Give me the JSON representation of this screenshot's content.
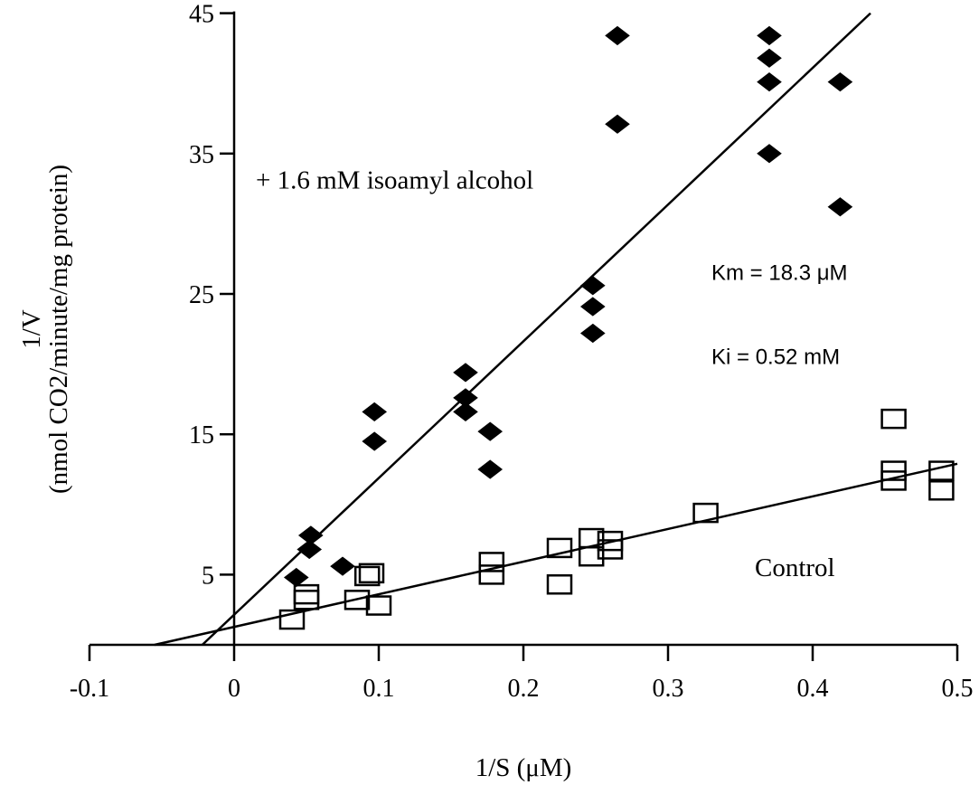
{
  "chart_data": {
    "type": "scatter",
    "title": "",
    "xlabel": "1/S (μM)",
    "ylabel_lines": [
      "1/V",
      "(nmol CO2/minute/mg protein)"
    ],
    "xlim": [
      -0.1,
      0.5
    ],
    "ylim": [
      -5,
      45
    ],
    "x_ticks": [
      -0.1,
      0,
      0.1,
      0.2,
      0.3,
      0.4,
      0.5
    ],
    "x_tick_labels": [
      "-0.1",
      "0",
      "0.1",
      "0.2",
      "0.3",
      "0.4",
      "0.5"
    ],
    "y_ticks": [
      5,
      15,
      25,
      35,
      45
    ],
    "y_tick_labels": [
      "5",
      "15",
      "25",
      "35",
      "45"
    ],
    "grid": false,
    "series": [
      {
        "name": "+ 1.6 mM isoamyl alcohol",
        "marker": "filled-diamond",
        "color": "#000000",
        "points": [
          [
            0.043,
            4.8
          ],
          [
            0.052,
            6.8
          ],
          [
            0.053,
            7.8
          ],
          [
            0.075,
            5.6
          ],
          [
            0.097,
            16.6
          ],
          [
            0.097,
            14.5
          ],
          [
            0.16,
            19.4
          ],
          [
            0.16,
            17.6
          ],
          [
            0.16,
            16.6
          ],
          [
            0.177,
            15.2
          ],
          [
            0.177,
            12.5
          ],
          [
            0.248,
            25.6
          ],
          [
            0.248,
            24.1
          ],
          [
            0.248,
            22.2
          ],
          [
            0.265,
            43.4
          ],
          [
            0.265,
            37.1
          ],
          [
            0.37,
            43.4
          ],
          [
            0.37,
            41.8
          ],
          [
            0.37,
            40.1
          ],
          [
            0.37,
            35.0
          ],
          [
            0.419,
            40.1
          ],
          [
            0.419,
            31.2
          ]
        ],
        "fit_line": [
          [
            -0.022,
            0
          ],
          [
            0.44,
            45
          ]
        ]
      },
      {
        "name": "Control",
        "marker": "open-square",
        "color": "#000000",
        "points": [
          [
            0.04,
            1.8
          ],
          [
            0.05,
            3.6
          ],
          [
            0.05,
            3.2
          ],
          [
            0.085,
            3.2
          ],
          [
            0.092,
            4.9
          ],
          [
            0.095,
            5.1
          ],
          [
            0.1,
            2.8
          ],
          [
            0.178,
            5.9
          ],
          [
            0.178,
            5.0
          ],
          [
            0.225,
            6.9
          ],
          [
            0.225,
            4.3
          ],
          [
            0.247,
            7.6
          ],
          [
            0.247,
            6.3
          ],
          [
            0.26,
            7.4
          ],
          [
            0.26,
            6.8
          ],
          [
            0.326,
            9.4
          ],
          [
            0.456,
            16.1
          ],
          [
            0.456,
            12.4
          ],
          [
            0.456,
            11.7
          ],
          [
            0.489,
            12.4
          ],
          [
            0.489,
            11.0
          ]
        ],
        "fit_line": [
          [
            -0.055,
            0
          ],
          [
            0.5,
            12.9
          ]
        ]
      }
    ],
    "annotations": [
      {
        "text": "+ 1.6 mM isoamyl alcohol",
        "x": 0.015,
        "y": 32.5
      },
      {
        "text": "Km = 18.3 μM",
        "x": 0.33,
        "y": 26.0
      },
      {
        "text": "Ki = 0.52 mM",
        "x": 0.33,
        "y": 20.0
      },
      {
        "text": "Control",
        "x": 0.36,
        "y": 4.9
      }
    ]
  }
}
